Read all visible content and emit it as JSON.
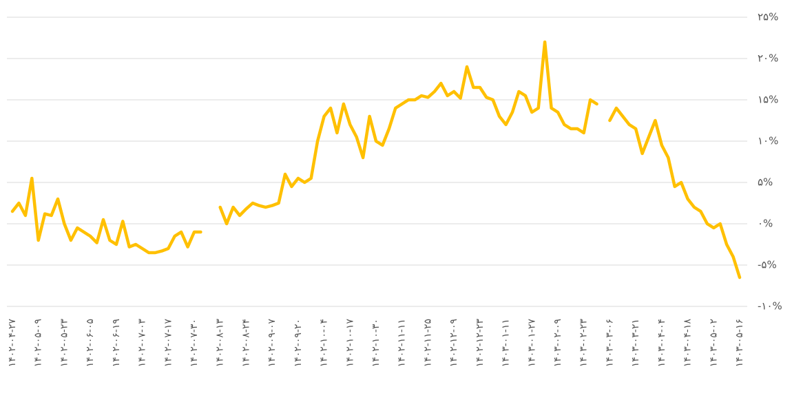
{
  "chart_data": {
    "type": "line",
    "color": "#ffc000",
    "grid": true,
    "categories": [
      "۱۴۰۲-۰۴-۲۷",
      null,
      null,
      null,
      "۱۴۰۲-۰۵-۰۹",
      null,
      null,
      null,
      "۱۴۰۲-۰۵-۲۳",
      null,
      null,
      null,
      "۱۴۰۲-۰۶-۰۵",
      null,
      null,
      null,
      "۱۴۰۲-۰۶-۱۹",
      null,
      null,
      null,
      "۱۴۰۲-۰۷-۰۳",
      null,
      null,
      null,
      "۱۴۰۲-۰۷-۱۷",
      null,
      null,
      null,
      "۱۴۰۲-۰۷-۳۰",
      null,
      null,
      null,
      "۱۴۰۲-۰۸-۱۳",
      null,
      null,
      null,
      "۱۴۰۲-۰۸-۲۴",
      null,
      null,
      null,
      "۱۴۰۲-۰۹-۰۷",
      null,
      null,
      null,
      "۱۴۰۲-۰۹-۲۰",
      null,
      null,
      null,
      "۱۴۰۲-۱۰-۰۴",
      null,
      null,
      null,
      "۱۴۰۲-۱۰-۱۷",
      null,
      null,
      null,
      "۱۴۰۲-۱۰-۳۰",
      null,
      null,
      null,
      "۱۴۰۲-۱۱-۱۱",
      null,
      null,
      null,
      "۱۴۰۲-۱۱-۲۵",
      null,
      null,
      null,
      "۱۴۰۲-۱۲-۰۹",
      null,
      null,
      null,
      "۱۴۰۲-۱۲-۲۳",
      null,
      null,
      null,
      "۱۴۰۳-۰۱-۱۱",
      null,
      null,
      null,
      "۱۴۰۳-۰۱-۲۷",
      null,
      null,
      null,
      "۱۴۰۳-۰۲-۰۹",
      null,
      null,
      null,
      "۱۴۰۳-۰۲-۲۳",
      null,
      null,
      null,
      "۱۴۰۳-۰۳-۰۶",
      null,
      null,
      null,
      "۱۴۰۳-۰۳-۲۱",
      null,
      null,
      null,
      "۱۴۰۳-۰۴-۰۴",
      null,
      null,
      null,
      "۱۴۰۳-۰۴-۱۸",
      null,
      null,
      null,
      "۱۴۰۳-۰۵-۰۲",
      null,
      null,
      null,
      "۱۴۰۳-۰۵-۱۶"
    ],
    "values": [
      1.5,
      2.5,
      1,
      5.5,
      -2,
      1.2,
      1,
      3,
      0,
      -2,
      -0.5,
      -1,
      -1.5,
      -2.3,
      0.5,
      -2,
      -2.5,
      0.3,
      -2.8,
      -2.5,
      -3,
      -3.5,
      -3.5,
      -3.3,
      -3,
      -1.5,
      -1,
      -2.8,
      -1,
      -1,
      null,
      null,
      2,
      0,
      2,
      1,
      1.8,
      2.5,
      2.2,
      2,
      2.2,
      2.5,
      6,
      4.5,
      5.5,
      5,
      5.5,
      10,
      13,
      14,
      11,
      14.5,
      12,
      10.5,
      8,
      13,
      10,
      9.5,
      11.5,
      14,
      14.5,
      15,
      15,
      15.5,
      15.3,
      16,
      17,
      15.5,
      16,
      15.2,
      19,
      16.5,
      16.5,
      15.3,
      15,
      13,
      12,
      13.5,
      16,
      15.5,
      13.5,
      14,
      22,
      14,
      13.5,
      12,
      11.5,
      11.5,
      11,
      15,
      14.5,
      null,
      12.5,
      14,
      13,
      12,
      11.5,
      8.5,
      10.5,
      12.5,
      9.5,
      8,
      4.5,
      5,
      3,
      2,
      1.5,
      0,
      -0.5,
      0,
      -2.5,
      -4,
      -6.5
    ],
    "ylim": [
      -12,
      26
    ],
    "yticks": [
      {
        "value": -10,
        "label": "-۱۰%"
      },
      {
        "value": -5,
        "label": "-۵%"
      },
      {
        "value": 0,
        "label": "۰%"
      },
      {
        "value": 5,
        "label": "۵%"
      },
      {
        "value": 10,
        "label": "۱۰%"
      },
      {
        "value": 15,
        "label": "۱۵%"
      },
      {
        "value": 20,
        "label": "۲۰%"
      },
      {
        "value": 25,
        "label": "۲۵%"
      }
    ]
  }
}
